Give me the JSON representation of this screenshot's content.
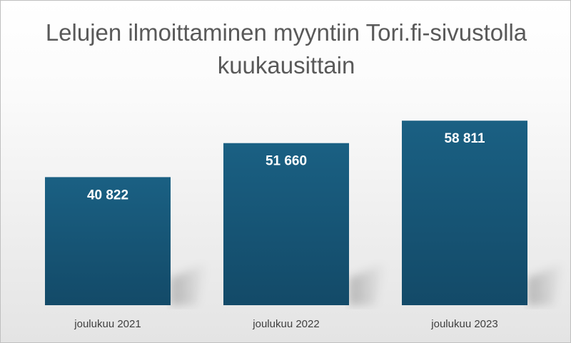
{
  "chart_data": {
    "type": "bar",
    "title": "Lelujen ilmoittaminen myyntiin Tori.fi-sivustolla kuukausittain",
    "categories": [
      "joulukuu 2021",
      "joulukuu 2022",
      "joulukuu 2023"
    ],
    "values": [
      40822,
      51660,
      58811
    ],
    "value_labels": [
      "40 822",
      "51 660",
      "58 811"
    ],
    "xlabel": "",
    "ylabel": "",
    "ylim": [
      0,
      65000
    ],
    "grid": false,
    "legend": "none",
    "colors": {
      "bar_top": "#1a6083",
      "bar_bottom": "#134a68",
      "value_text": "#ffffff",
      "title": "#595959",
      "tick_text": "#404040"
    }
  }
}
